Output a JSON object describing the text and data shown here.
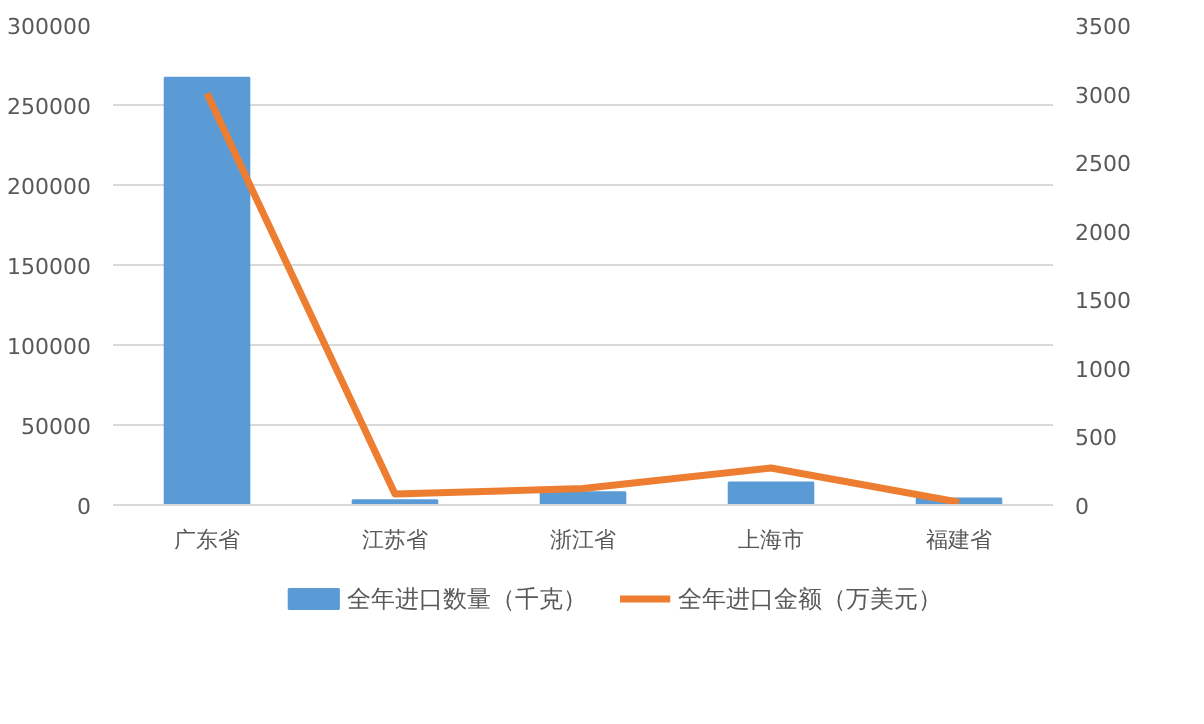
{
  "chart_data": {
    "type": "bar",
    "categories": [
      "广东省",
      "江苏省",
      "浙江省",
      "上海市",
      "福建省"
    ],
    "series": [
      {
        "name": "全年进口数量（千克）",
        "color": "#5b9bd5",
        "values": [
          267000,
          3000,
          8000,
          14000,
          4000
        ]
      },
      {
        "name": "全年进口金额（万美元）",
        "type": "line",
        "axis": "y2",
        "color": "#ed7d31",
        "values": [
          3000,
          80,
          120,
          270,
          20
        ]
      }
    ],
    "ylim": [
      0,
      300000
    ],
    "yticks": [
      0,
      50000,
      100000,
      150000,
      200000,
      250000,
      300000
    ],
    "y2lim": [
      0,
      3500
    ],
    "y2ticks": [
      0,
      500,
      1000,
      1500,
      2000,
      2500,
      3000,
      3500
    ],
    "grid": "y",
    "legend": "bottom"
  }
}
